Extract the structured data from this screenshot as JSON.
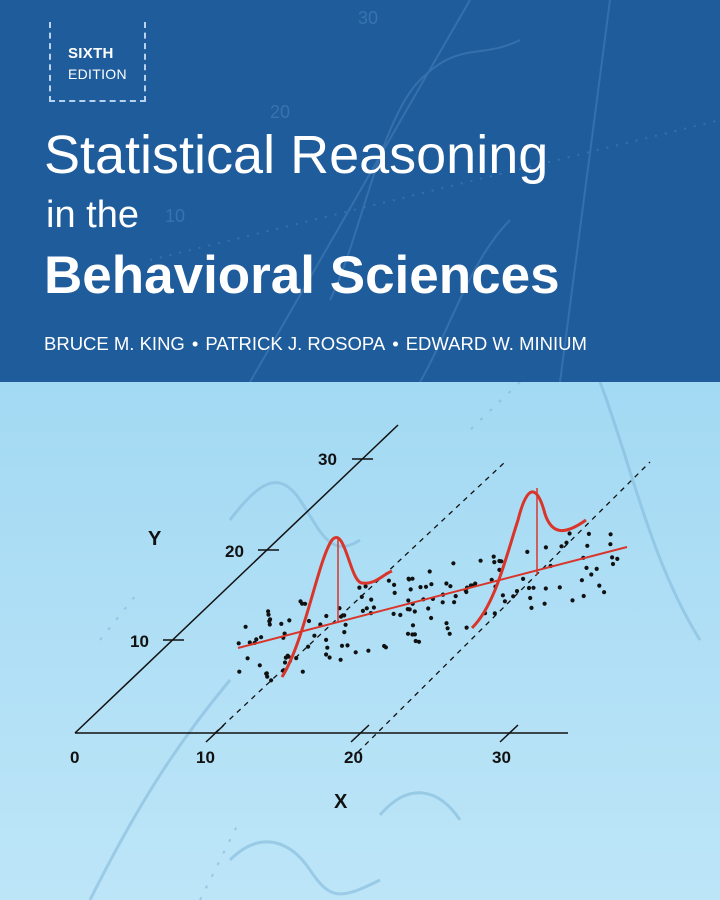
{
  "edition": {
    "line1": "SIXTH",
    "line2": "EDITION"
  },
  "title": {
    "line1": "Statistical Reasoning",
    "line2": "in the",
    "line3": "Behavioral Sciences"
  },
  "authors": [
    "BRUCE M. KING",
    "PATRICK J. ROSOPA",
    "EDWARD W. MINIUM"
  ],
  "author_separator": "•",
  "figure": {
    "x_axis_label": "X",
    "y_axis_label": "Y",
    "x_ticks": [
      "0",
      "10",
      "20",
      "30"
    ],
    "y_ticks": [
      "10",
      "20",
      "30"
    ]
  },
  "colors": {
    "band": "#1f5c9c",
    "sky": "#a4daf3",
    "curve": "#d9352a",
    "ink": "#111111"
  }
}
